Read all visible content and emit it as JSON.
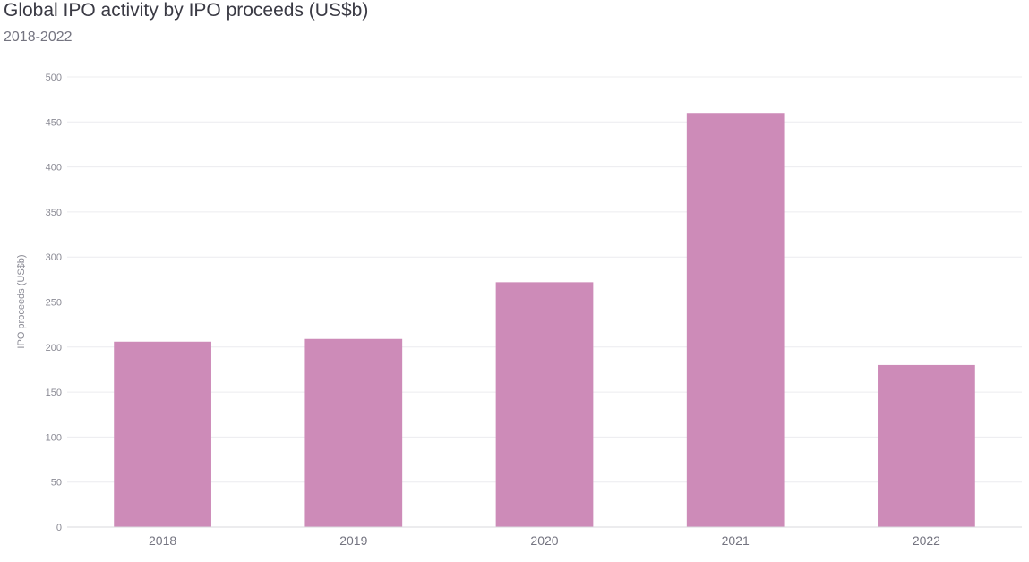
{
  "chart_data": {
    "type": "bar",
    "title": "Global IPO activity by IPO proceeds (US$b)",
    "subtitle": "2018-2022",
    "xlabel": "",
    "ylabel": "IPO proceeds (US$b)",
    "categories": [
      "2018",
      "2019",
      "2020",
      "2021",
      "2022"
    ],
    "values": [
      206,
      209,
      272,
      460,
      180
    ],
    "ylim": [
      0,
      500
    ],
    "yticks": [
      0,
      50,
      100,
      150,
      200,
      250,
      300,
      350,
      400,
      450,
      500
    ],
    "grid": true,
    "bar_color": "#cd8bb8"
  }
}
